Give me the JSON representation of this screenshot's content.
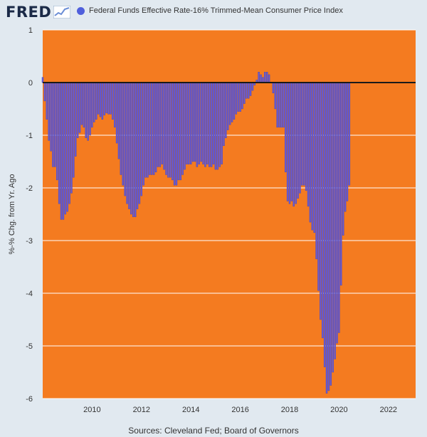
{
  "brand": {
    "logo_text": "FRED"
  },
  "colors": {
    "plot_background": "#f47b20",
    "bar_fill": "#6b5bd6",
    "bar_edge": "#3a45b8",
    "legend_marker": "#4f5fdc",
    "gridline": "#ffffff",
    "zero_line": "#1a1a1a",
    "page_background": "#e1e9f0"
  },
  "chart_data": {
    "type": "bar",
    "title": "Federal Funds Effective Rate-16% Trimmed-Mean Consumer Price Index",
    "series": [
      {
        "name": "Federal Funds Effective Rate-16% Trimmed-Mean Consumer Price Index"
      }
    ],
    "ylabel": "%-% Chg. from Yr. Ago",
    "xlabel": "",
    "ylim": [
      -6,
      1
    ],
    "xlim": [
      2008.0,
      2023.1
    ],
    "yticks": [
      "1",
      "0",
      "-1",
      "-2",
      "-3",
      "-4",
      "-5",
      "-6"
    ],
    "xticks": [
      "2010",
      "2012",
      "2014",
      "2016",
      "2018",
      "2020",
      "2022"
    ],
    "grid": true,
    "source": "Sources: Cleveland Fed; Board of Governors",
    "x_start": 2008.0,
    "x_step_years": 0.08333,
    "frequency": "monthly",
    "values": [
      0.1,
      -0.35,
      -0.7,
      -1.1,
      -1.3,
      -1.6,
      -1.6,
      -1.85,
      -2.3,
      -2.6,
      -2.6,
      -2.5,
      -2.45,
      -2.3,
      -2.1,
      -1.8,
      -1.4,
      -1.05,
      -0.95,
      -0.8,
      -0.85,
      -1.05,
      -1.1,
      -1.0,
      -0.85,
      -0.75,
      -0.7,
      -0.6,
      -0.65,
      -0.7,
      -0.62,
      -0.58,
      -0.6,
      -0.6,
      -0.7,
      -0.85,
      -1.15,
      -1.45,
      -1.75,
      -1.95,
      -2.15,
      -2.3,
      -2.4,
      -2.5,
      -2.55,
      -2.55,
      -2.4,
      -2.3,
      -2.15,
      -1.95,
      -1.8,
      -1.8,
      -1.75,
      -1.75,
      -1.75,
      -1.7,
      -1.6,
      -1.6,
      -1.55,
      -1.65,
      -1.75,
      -1.8,
      -1.8,
      -1.85,
      -1.95,
      -1.95,
      -1.85,
      -1.85,
      -1.75,
      -1.65,
      -1.55,
      -1.55,
      -1.55,
      -1.5,
      -1.5,
      -1.6,
      -1.55,
      -1.5,
      -1.55,
      -1.6,
      -1.55,
      -1.6,
      -1.6,
      -1.55,
      -1.65,
      -1.65,
      -1.6,
      -1.55,
      -1.2,
      -1.05,
      -0.9,
      -0.8,
      -0.75,
      -0.7,
      -0.6,
      -0.55,
      -0.55,
      -0.5,
      -0.4,
      -0.3,
      -0.3,
      -0.25,
      -0.15,
      -0.05,
      0.05,
      0.2,
      0.15,
      0.1,
      0.2,
      0.2,
      0.15,
      0.0,
      -0.2,
      -0.5,
      -0.85,
      -0.85,
      -0.85,
      -0.85,
      -1.7,
      -2.25,
      -2.3,
      -2.25,
      -2.35,
      -2.3,
      -2.2,
      -2.1,
      -1.95,
      -1.95,
      -2.05,
      -2.35,
      -2.65,
      -2.8,
      -2.85,
      -3.35,
      -3.95,
      -4.5,
      -4.85,
      -5.4,
      -5.9,
      -5.85,
      -5.75,
      -5.5,
      -5.25,
      -4.95,
      -4.75,
      -3.85,
      -2.9,
      -2.45,
      -2.25,
      -1.95
    ]
  },
  "footer": {
    "source_text": "Sources: Cleveland Fed; Board of Governors"
  }
}
